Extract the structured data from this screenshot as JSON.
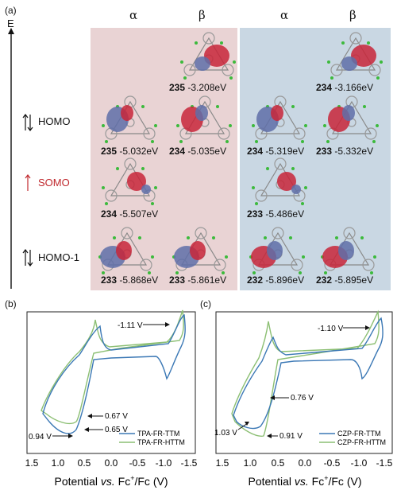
{
  "panels": {
    "a": "(a)",
    "b": "(b)",
    "c": "(c)"
  },
  "energy_axis": "E",
  "spin_headers": [
    "α",
    "β",
    "α",
    "β"
  ],
  "orbital_labels": [
    {
      "text": "HOMO",
      "color": "#111111"
    },
    {
      "text": "SOMO",
      "color": "#c0282d"
    },
    {
      "text": "HOMO-1",
      "color": "#111111"
    }
  ],
  "colors": {
    "left_bg": "#e9d3d4",
    "right_bg": "#c9d7e3",
    "lobe_red": "#c8263a",
    "lobe_blue": "#5f6fa8",
    "cv_blue": "#3b78b5",
    "cv_green": "#8cbf73"
  },
  "levels": {
    "row1": [
      {
        "id": "235",
        "value": "-3.208eV"
      },
      {
        "id": "234",
        "value": "-3.166eV"
      }
    ],
    "row2": [
      {
        "id": "235",
        "value": "-5.032eV"
      },
      {
        "id": "234",
        "value": "-5.035eV"
      },
      {
        "id": "234",
        "value": "-5.319eV"
      },
      {
        "id": "233",
        "value": "-5.332eV"
      }
    ],
    "row3": [
      {
        "id": "234",
        "value": "-5.507eV"
      },
      {
        "id": "233",
        "value": "-5.486eV"
      }
    ],
    "row4": [
      {
        "id": "233",
        "value": "-5.868eV"
      },
      {
        "id": "233",
        "value": "-5.861eV"
      },
      {
        "id": "232",
        "value": "-5.896eV"
      },
      {
        "id": "232",
        "value": "-5.895eV"
      }
    ]
  },
  "cv_b": {
    "xticks": [
      "1.5",
      "1.0",
      "0.5",
      "0.0",
      "-0.5",
      "-1.0",
      "-1.5"
    ],
    "annotations": [
      "-1.11 V",
      "0.67 V",
      "0.65 V",
      "0.94 V"
    ],
    "legend": [
      "TPA-FR-TTM",
      "TPA-FR-HTTM"
    ]
  },
  "cv_c": {
    "xticks": [
      "1.5",
      "1.0",
      "0.5",
      "0.0",
      "-0.5",
      "-1.0",
      "-1.5"
    ],
    "annotations": [
      "-1.10 V",
      "0.76 V",
      "1.03 V",
      "0.91 V"
    ],
    "legend": [
      "CZP-FR-TTM",
      "CZP-FR-HTTM"
    ]
  },
  "xlabel": {
    "pre": "Potential ",
    "vs": "vs.",
    "fc": " Fc",
    "sup": "+",
    "post": "/Fc (V)"
  }
}
